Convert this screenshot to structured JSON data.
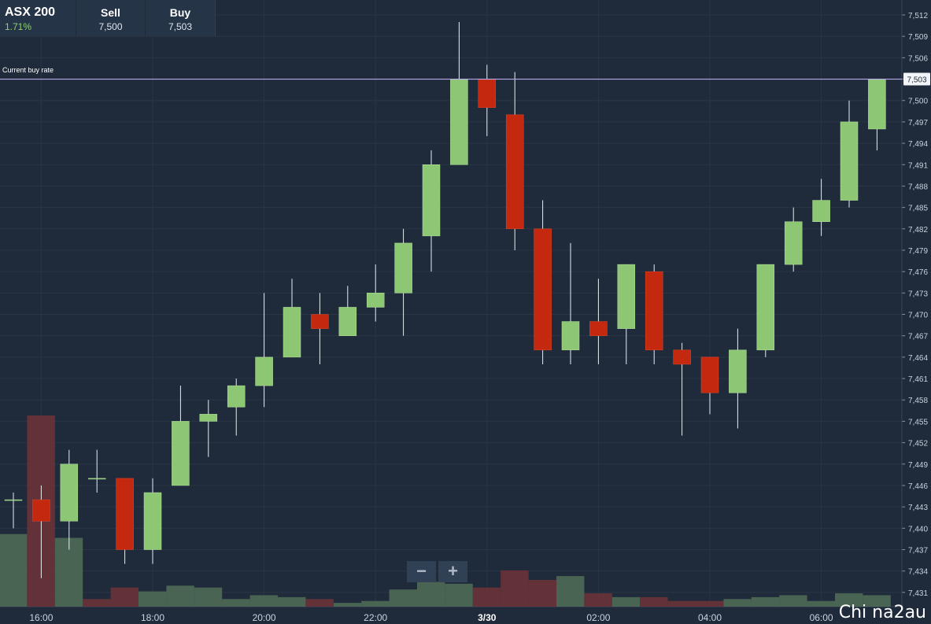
{
  "quote": {
    "instrument": "ASX 200",
    "change": "1.71%",
    "sell_label": "Sell",
    "sell_value": "7,500",
    "buy_label": "Buy",
    "buy_value": "7,503"
  },
  "current_buy_rate_label": "Current buy rate",
  "current_buy_rate_value": "7,503",
  "zoom": {
    "minus": "−",
    "plus": "+"
  },
  "watermark": "Chi na2au",
  "colors": {
    "background": "#1f2a3a",
    "up": "#8dc774",
    "down": "#c4290f",
    "volume_up": "#4e6a55",
    "volume_down": "#6a3339",
    "buy_rate_line": "#b8a8e6"
  },
  "chart_data": {
    "type": "candlestick",
    "ylim": [
      7428,
      7514
    ],
    "y_ticks": [
      "7,512",
      "7,509",
      "7,506",
      "7,503",
      "7,500",
      "7,497",
      "7,494",
      "7,491",
      "7,488",
      "7,485",
      "7,482",
      "7,479",
      "7,476",
      "7,473",
      "7,470",
      "7,467",
      "7,464",
      "7,461",
      "7,458",
      "7,455",
      "7,452",
      "7,449",
      "7,446",
      "7,443",
      "7,440",
      "7,437",
      "7,434",
      "7,431"
    ],
    "y_tick_values": [
      7512,
      7509,
      7506,
      7503,
      7500,
      7497,
      7494,
      7491,
      7488,
      7485,
      7482,
      7479,
      7476,
      7473,
      7470,
      7467,
      7464,
      7461,
      7458,
      7455,
      7452,
      7449,
      7446,
      7443,
      7440,
      7437,
      7434,
      7431
    ],
    "x_ticks": [
      {
        "label": "16:00",
        "index": 1
      },
      {
        "label": "18:00",
        "index": 5
      },
      {
        "label": "20:00",
        "index": 9
      },
      {
        "label": "22:00",
        "index": 13
      },
      {
        "label": "3/30",
        "index": 17
      },
      {
        "label": "02:00",
        "index": 21
      },
      {
        "label": "04:00",
        "index": 25
      },
      {
        "label": "06:00",
        "index": 29
      }
    ],
    "candles": [
      {
        "o": 7444,
        "h": 7445,
        "l": 7440,
        "c": 7444
      },
      {
        "o": 7444,
        "h": 7446,
        "l": 7433,
        "c": 7441
      },
      {
        "o": 7441,
        "h": 7451,
        "l": 7437,
        "c": 7449
      },
      {
        "o": 7447,
        "h": 7451,
        "l": 7445,
        "c": 7447
      },
      {
        "o": 7447,
        "h": 7447,
        "l": 7435,
        "c": 7437
      },
      {
        "o": 7437,
        "h": 7447,
        "l": 7435,
        "c": 7445
      },
      {
        "o": 7446,
        "h": 7460,
        "l": 7446,
        "c": 7455
      },
      {
        "o": 7455,
        "h": 7458,
        "l": 7450,
        "c": 7456
      },
      {
        "o": 7457,
        "h": 7461,
        "l": 7453,
        "c": 7460
      },
      {
        "o": 7460,
        "h": 7473,
        "l": 7457,
        "c": 7464
      },
      {
        "o": 7464,
        "h": 7475,
        "l": 7464,
        "c": 7471
      },
      {
        "o": 7470,
        "h": 7473,
        "l": 7463,
        "c": 7468
      },
      {
        "o": 7467,
        "h": 7474,
        "l": 7467,
        "c": 7471
      },
      {
        "o": 7471,
        "h": 7477,
        "l": 7469,
        "c": 7473
      },
      {
        "o": 7473,
        "h": 7482,
        "l": 7467,
        "c": 7480
      },
      {
        "o": 7481,
        "h": 7493,
        "l": 7476,
        "c": 7491
      },
      {
        "o": 7491,
        "h": 7511,
        "l": 7491,
        "c": 7503
      },
      {
        "o": 7503,
        "h": 7505,
        "l": 7495,
        "c": 7499
      },
      {
        "o": 7498,
        "h": 7504,
        "l": 7479,
        "c": 7482
      },
      {
        "o": 7482,
        "h": 7486,
        "l": 7463,
        "c": 7465
      },
      {
        "o": 7465,
        "h": 7480,
        "l": 7463,
        "c": 7469
      },
      {
        "o": 7469,
        "h": 7475,
        "l": 7463,
        "c": 7467
      },
      {
        "o": 7468,
        "h": 7477,
        "l": 7463,
        "c": 7477
      },
      {
        "o": 7476,
        "h": 7477,
        "l": 7463,
        "c": 7465
      },
      {
        "o": 7465,
        "h": 7466,
        "l": 7453,
        "c": 7463
      },
      {
        "o": 7464,
        "h": 7464,
        "l": 7456,
        "c": 7459
      },
      {
        "o": 7459,
        "h": 7468,
        "l": 7454,
        "c": 7465
      },
      {
        "o": 7465,
        "h": 7477,
        "l": 7464,
        "c": 7477
      },
      {
        "o": 7477,
        "h": 7485,
        "l": 7476,
        "c": 7483
      },
      {
        "o": 7483,
        "h": 7489,
        "l": 7481,
        "c": 7486
      },
      {
        "o": 7486,
        "h": 7500,
        "l": 7485,
        "c": 7497
      },
      {
        "o": 7496,
        "h": 7503,
        "l": 7493,
        "c": 7503
      }
    ],
    "volumes": [
      {
        "v": 0.38,
        "dir": "up"
      },
      {
        "v": 1.0,
        "dir": "down"
      },
      {
        "v": 0.36,
        "dir": "up"
      },
      {
        "v": 0.04,
        "dir": "down"
      },
      {
        "v": 0.1,
        "dir": "down"
      },
      {
        "v": 0.08,
        "dir": "up"
      },
      {
        "v": 0.11,
        "dir": "up"
      },
      {
        "v": 0.1,
        "dir": "up"
      },
      {
        "v": 0.04,
        "dir": "up"
      },
      {
        "v": 0.06,
        "dir": "up"
      },
      {
        "v": 0.05,
        "dir": "up"
      },
      {
        "v": 0.04,
        "dir": "down"
      },
      {
        "v": 0.02,
        "dir": "up"
      },
      {
        "v": 0.03,
        "dir": "up"
      },
      {
        "v": 0.09,
        "dir": "up"
      },
      {
        "v": 0.13,
        "dir": "up"
      },
      {
        "v": 0.12,
        "dir": "up"
      },
      {
        "v": 0.1,
        "dir": "down"
      },
      {
        "v": 0.19,
        "dir": "down"
      },
      {
        "v": 0.14,
        "dir": "down"
      },
      {
        "v": 0.16,
        "dir": "up"
      },
      {
        "v": 0.07,
        "dir": "down"
      },
      {
        "v": 0.05,
        "dir": "up"
      },
      {
        "v": 0.05,
        "dir": "down"
      },
      {
        "v": 0.03,
        "dir": "down"
      },
      {
        "v": 0.03,
        "dir": "down"
      },
      {
        "v": 0.04,
        "dir": "up"
      },
      {
        "v": 0.05,
        "dir": "up"
      },
      {
        "v": 0.06,
        "dir": "up"
      },
      {
        "v": 0.03,
        "dir": "up"
      },
      {
        "v": 0.07,
        "dir": "up"
      },
      {
        "v": 0.06,
        "dir": "up"
      }
    ],
    "current_buy_rate": 7503,
    "grid": true
  }
}
